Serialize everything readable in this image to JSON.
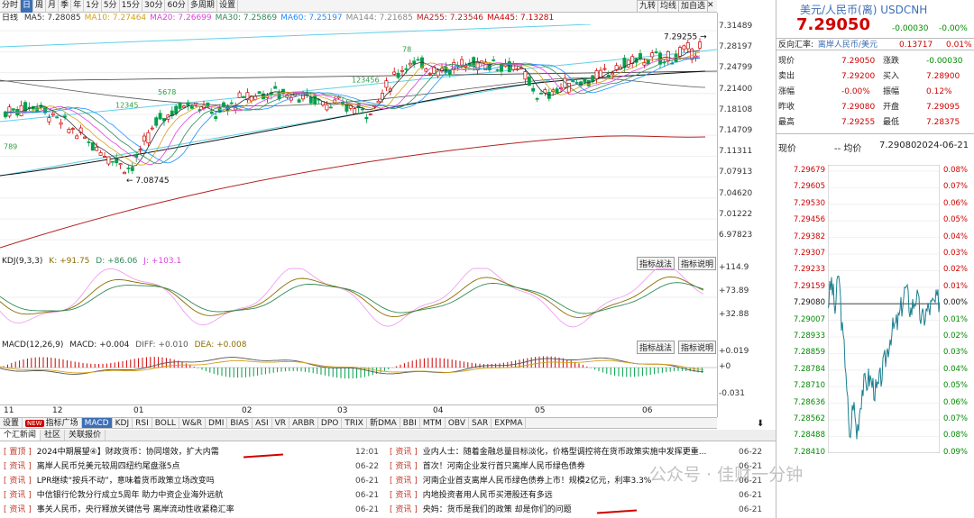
{
  "toolbar": {
    "periods": [
      "分时",
      "日",
      "周",
      "月",
      "季",
      "年",
      "1分",
      "5分",
      "15分",
      "30分",
      "60分",
      "多周期",
      "设置"
    ],
    "active_period": "日",
    "right_buttons": [
      "九转",
      "均线",
      "加自选"
    ]
  },
  "main_chart": {
    "period_label": "日线",
    "ma_legend": [
      {
        "label": "MA5: 7.28085",
        "color": "#333333"
      },
      {
        "label": "MA10: 7.27464",
        "color": "#d4a017"
      },
      {
        "label": "MA20: 7.26699",
        "color": "#e040e0"
      },
      {
        "label": "MA30: 7.25869",
        "color": "#2e8b57"
      },
      {
        "label": "MA60: 7.25197",
        "color": "#1e90ff"
      },
      {
        "label": "MA144: 7.21685",
        "color": "#888888"
      },
      {
        "label": "MA255: 7.23546",
        "color": "#b22222"
      },
      {
        "label": "MA445: 7.13281",
        "color": "#cc0000"
      }
    ],
    "y_ticks": [
      "7.31489",
      "7.28197",
      "7.24799",
      "7.21400",
      "7.18108",
      "7.14709",
      "7.11311",
      "7.07913",
      "7.04620",
      "7.01222",
      "6.97823"
    ],
    "high_marker": "7.29255",
    "low_marker": "7.08745",
    "annotations": [
      "789",
      "12345",
      "5678",
      "78",
      "123456"
    ]
  },
  "kdj": {
    "legend": "KDJ(9,3,3)",
    "k": "K: +91.75",
    "d": "D: +86.06",
    "j": "J: +103.1",
    "y_ticks": [
      "+114.9",
      "+73.89",
      "+32.88"
    ],
    "buttons": [
      "指标战法",
      "指标说明"
    ]
  },
  "macd": {
    "legend": "MACD(12,26,9)",
    "macd": "MACD: +0.004",
    "diff": "DIFF: +0.010",
    "dea": "DEA: +0.008",
    "y_ticks": [
      "+0.019",
      "+0",
      "-0.031"
    ],
    "buttons": [
      "指标战法",
      "指标说明"
    ]
  },
  "x_axis": [
    "11",
    "12",
    "01",
    "02",
    "03",
    "04",
    "05",
    "06"
  ],
  "indicator_tabs": {
    "settings": "设置",
    "new_badge": "NEW",
    "items": [
      "指标广场",
      "MACD",
      "KDJ",
      "RSI",
      "BOLL",
      "W&R",
      "DMI",
      "BIAS",
      "ASI",
      "VR",
      "ARBR",
      "DPO",
      "TRIX",
      "新DMA",
      "BBI",
      "MTM",
      "OBV",
      "SAR",
      "EXPMA"
    ],
    "active": "MACD"
  },
  "news": {
    "tabs": [
      "个汇新闻",
      "社区",
      "关联报价"
    ],
    "active_tab": "个汇新闻",
    "left": [
      {
        "tag": "[ 置顶 ]",
        "title": "2024中期展望④】财政货币：协同增效，扩大内需",
        "date": "12:01"
      },
      {
        "tag": "[ 资讯 ]",
        "title": "离岸人民币兑美元较周四纽约尾盘涨5点",
        "date": "06-22"
      },
      {
        "tag": "[ 资讯 ]",
        "title": "LPR继续“按兵不动”，意味着货币政策立场改变吗",
        "date": "06-21"
      },
      {
        "tag": "[ 资讯 ]",
        "title": "中信银行伦敦分行成立5周年 助力中资企业海外远航",
        "date": "06-21"
      },
      {
        "tag": "[ 资讯 ]",
        "title": "事关人民币，央行释放关键信号 离岸流动性收紧稳汇率",
        "date": "06-21"
      }
    ],
    "right": [
      {
        "tag": "[ 资讯 ]",
        "title": "业内人士：随着金融总量目标淡化，价格型调控将在货币政策实施中发挥更重...",
        "date": "06-22"
      },
      {
        "tag": "[ 资讯 ]",
        "title": "首次！河南企业发行首只离岸人民币绿色债券",
        "date": "06-21"
      },
      {
        "tag": "[ 资讯 ]",
        "title": "河南企业首支离岸人民币绿色债券上市！规模2亿元，利率3.3%",
        "date": "06-21"
      },
      {
        "tag": "[ 资讯 ]",
        "title": "内地投资者用人民币买港股还有多远",
        "date": "06-21"
      },
      {
        "tag": "[ 资讯 ]",
        "title": "央妈：货币是我们的政策 却是你们的问题",
        "date": "06-21"
      }
    ]
  },
  "watermark": "公众号 · 佳财一分钟",
  "right_panel": {
    "title": "美元/人民币(离) USDCNH",
    "price": "7.29050",
    "change": "-0.00030",
    "change_pct": "-0.00%",
    "ref_label": "反向汇率:",
    "ref_name": "离岸人民币/美元",
    "ref_value": "0.13717",
    "ref_pct": "0.01%",
    "quotes": [
      {
        "l1": "现价",
        "v1": "7.29050",
        "l2": "涨跌",
        "v2": "-0.00030"
      },
      {
        "l1": "卖出",
        "v1": "7.29200",
        "l2": "买入",
        "v2": "7.28900"
      },
      {
        "l1": "涨幅",
        "v1": "-0.00%",
        "l2": "振幅",
        "v2": "0.12%"
      },
      {
        "l1": "昨收",
        "v1": "7.29080",
        "l2": "开盘",
        "v2": "7.29095"
      },
      {
        "l1": "最高",
        "v1": "7.29255",
        "l2": "最低",
        "v2": "7.28375"
      }
    ],
    "mini_header": {
      "label": "现价",
      "avg": "-- 均价",
      "ref": "7.29080",
      "date": "2024-06-21"
    },
    "mini_left": [
      "7.29679",
      "7.29605",
      "7.29530",
      "7.29456",
      "7.29382",
      "7.29307",
      "7.29233",
      "7.29159",
      "7.29080",
      "7.29007",
      "7.28933",
      "7.28859",
      "7.28784",
      "7.28710",
      "7.28636",
      "7.28562",
      "7.28488",
      "7.28410"
    ],
    "mini_right": [
      "0.08%",
      "0.07%",
      "0.06%",
      "0.05%",
      "0.04%",
      "0.03%",
      "0.02%",
      "0.01%",
      "0.00%",
      "0.01%",
      "0.02%",
      "0.03%",
      "0.04%",
      "0.05%",
      "0.06%",
      "0.07%",
      "0.08%",
      "0.09%"
    ]
  }
}
